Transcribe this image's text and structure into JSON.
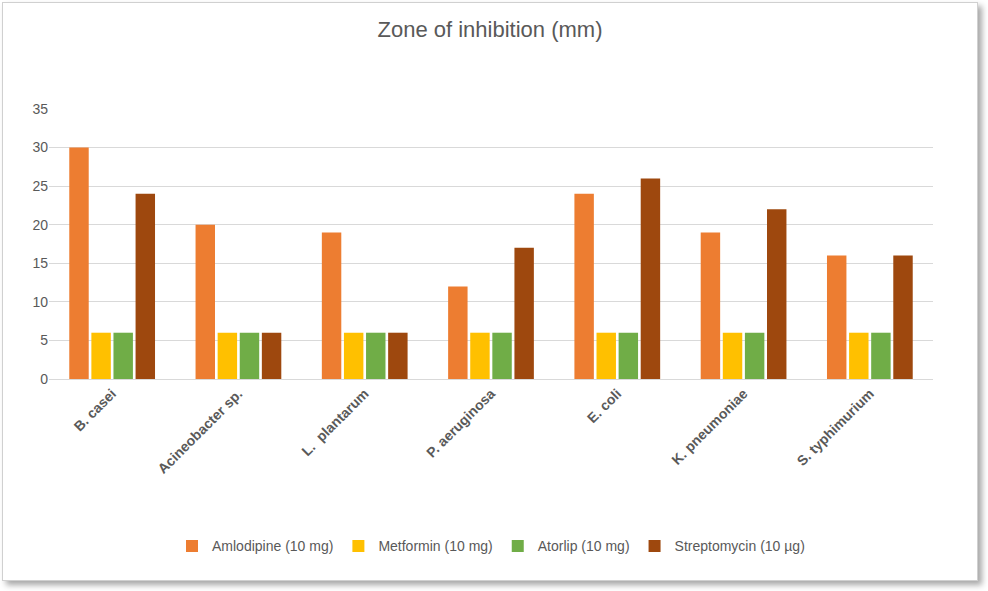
{
  "chart_data": {
    "type": "bar",
    "title": "Zone of inhibition (mm)",
    "categories": [
      "B. casei",
      "Acineobacter sp.",
      "L.  plantarum",
      "P. aeruginosa",
      "E. coli",
      "K. pneumoniae",
      "S. typhimurium"
    ],
    "series": [
      {
        "name": "Amlodipine (10 mg)",
        "color": "#ed7d31",
        "values": [
          30,
          20,
          19,
          12,
          24,
          19,
          16
        ]
      },
      {
        "name": "Metformin (10 mg)",
        "color": "#ffc000",
        "values": [
          6,
          6,
          6,
          6,
          6,
          6,
          6
        ]
      },
      {
        "name": "Atorlip (10 mg)",
        "color": "#70ad47",
        "values": [
          6,
          6,
          6,
          6,
          6,
          6,
          6
        ]
      },
      {
        "name": "Streptomycin (10 µg)",
        "color": "#9e480e",
        "values": [
          24,
          6,
          6,
          17,
          26,
          22,
          16
        ]
      }
    ],
    "ylim": [
      0,
      35
    ],
    "yticks": [
      0,
      5,
      10,
      15,
      20,
      25,
      30,
      35
    ],
    "grid": true,
    "legend": "bottom"
  }
}
